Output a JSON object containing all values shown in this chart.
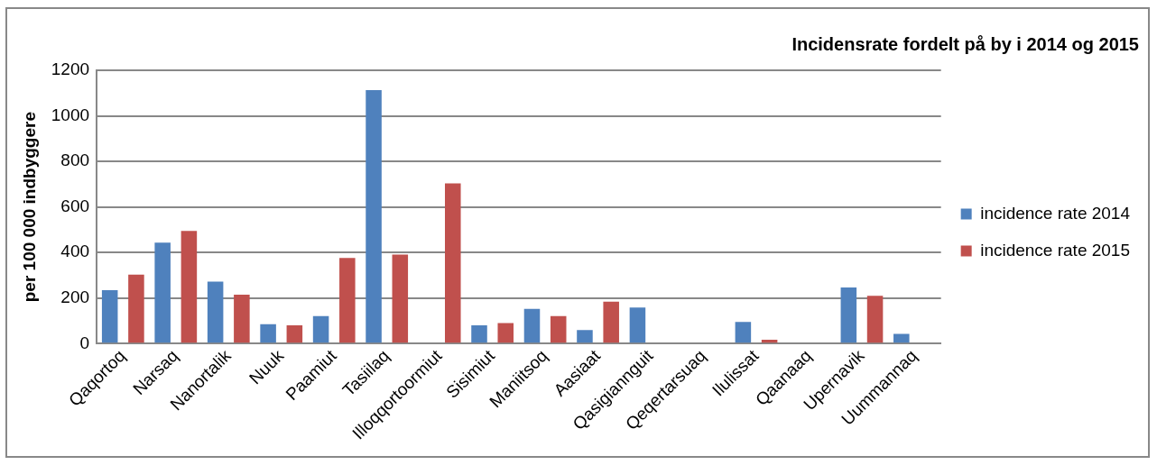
{
  "chart_data": {
    "type": "bar",
    "title": "Incidensrate fordelt på by i 2014 og 2015",
    "ylabel": "per 100 000 indbyggere",
    "categories": [
      "Qaqortoq",
      "Narsaq",
      "Nanortalik",
      "Nuuk",
      "Paamiut",
      "Tasiilaq",
      "Illoqqortoormiut",
      "Sisimiut",
      "Maniitsoq",
      "Aasiaat",
      "Qasigiannguit",
      "Qeqertarsuaq",
      "Ilulissat",
      "Qaanaaq",
      "Upernavik",
      "Uummannaq"
    ],
    "series": [
      {
        "name": "incidence rate 2014",
        "color": "#4f81bd",
        "values": [
          235,
          443,
          272,
          85,
          121,
          1113,
          null,
          80,
          152,
          59,
          158,
          null,
          95,
          null,
          246,
          43
        ]
      },
      {
        "name": "incidence rate 2015",
        "color": "#c0504d",
        "values": [
          303,
          495,
          215,
          80,
          376,
          391,
          703,
          90,
          121,
          184,
          null,
          null,
          17,
          null,
          210,
          null
        ]
      }
    ],
    "ylim": [
      0,
      1200
    ],
    "yticks": [
      0,
      200,
      400,
      600,
      800,
      1000,
      1200
    ],
    "grid": "y",
    "legend": "right"
  }
}
